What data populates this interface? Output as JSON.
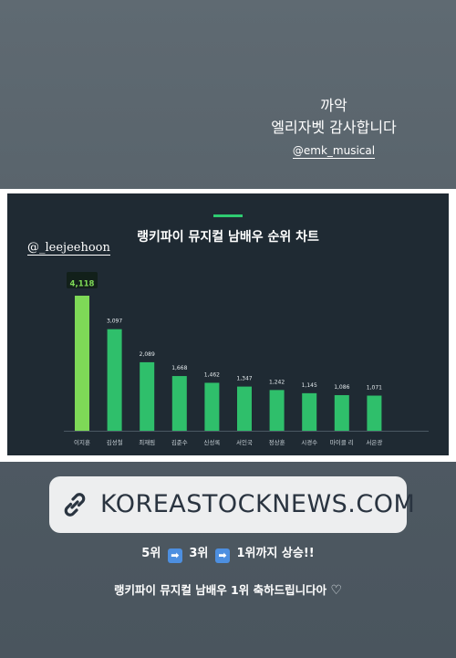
{
  "story_text": {
    "line1": "까악",
    "line2": "엘리자벳 감사합니다",
    "mention": "@emk_musical"
  },
  "handle": "@_leejeehoon",
  "link": {
    "icon": "link-icon",
    "text": "KOREASTOCKNEWS.COM"
  },
  "rank_caption": {
    "r1": "5위",
    "r2": "3위",
    "r3": "1위까지 상승!!",
    "arrow_glyph": "➡"
  },
  "congrats": "랭키파이 뮤지컬 남배우 1위 축하드립니다아",
  "heart_icon": "heart-icon",
  "colors": {
    "panel_bg": "#1f2a33",
    "bar_highlight": "#7ed957",
    "bar_normal": "#2fbf6b",
    "accent": "#2ecc71",
    "label_bg": "#12201a",
    "label_text": "#7ed957"
  },
  "chart_data": {
    "type": "bar",
    "title": "랭키파이 뮤지컬 남배우 순위 차트",
    "categories": [
      "이지훈",
      "김성철",
      "최재림",
      "김준수",
      "신성록",
      "서인국",
      "정상훈",
      "시경수",
      "마이클 리",
      "서은광"
    ],
    "values": [
      4118,
      3097,
      2089,
      1668,
      1462,
      1347,
      1242,
      1145,
      1086,
      1071
    ],
    "value_labels": [
      "4,118",
      "3,097",
      "2,089",
      "1,668",
      "1,462",
      "1,347",
      "1,242",
      "1,145",
      "1,086",
      "1,071"
    ],
    "highlight_index": 0,
    "ylim": [
      0,
      4118
    ],
    "grid": false,
    "legend": "none"
  }
}
